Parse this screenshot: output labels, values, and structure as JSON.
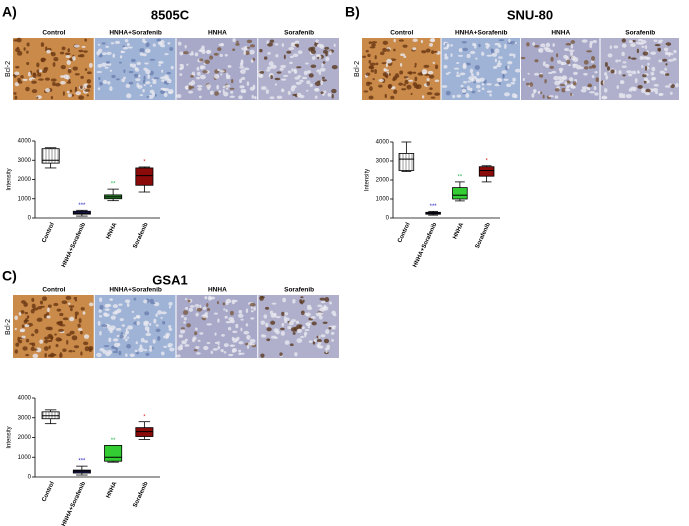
{
  "chart_data": [
    {
      "type": "box",
      "panel": "A)",
      "title": "8505C",
      "row_label": "Bcl-2",
      "image_labels": [
        "Control",
        "HNHA+Sorafenib",
        "HNHA",
        "Sorafenib"
      ],
      "ylabel": "Intensity",
      "categories": [
        "Control",
        "HNHA+Sorafenib",
        "HNHA",
        "Sorafenib"
      ],
      "boxes": [
        {
          "min": 2600,
          "q1": 2850,
          "median": 3000,
          "q3": 3600,
          "max": 3650
        },
        {
          "min": 100,
          "q1": 200,
          "median": 250,
          "q3": 350,
          "max": 400
        },
        {
          "min": 900,
          "q1": 1000,
          "median": 1100,
          "q3": 1200,
          "max": 1500
        },
        {
          "min": 1350,
          "q1": 1700,
          "median": 2200,
          "q3": 2600,
          "max": 2650
        }
      ],
      "colors": [
        "#ffffff",
        "#1c1c5c",
        "#2f8f2f",
        "#8b0a0a"
      ],
      "annotations": [
        null,
        "***",
        "**",
        "*"
      ],
      "annotation_colors": [
        null,
        "#2020c0",
        "#20b050",
        "#e02020"
      ],
      "ylim": [
        0,
        4000
      ],
      "yticks": [
        0,
        1000,
        2000,
        3000,
        4000
      ]
    },
    {
      "type": "box",
      "panel": "B)",
      "title": "SNU-80",
      "row_label": "Bcl-2",
      "image_labels": [
        "Control",
        "HNHA+Sorafenib",
        "HNHA",
        "Sorafenib"
      ],
      "ylabel": "Intensity",
      "categories": [
        "Control",
        "HNHA+Sorafenib",
        "HNHA",
        "Sorafenib"
      ],
      "boxes": [
        {
          "min": 2450,
          "q1": 2500,
          "median": 3100,
          "q3": 3400,
          "max": 4000
        },
        {
          "min": 150,
          "q1": 200,
          "median": 250,
          "q3": 300,
          "max": 350
        },
        {
          "min": 900,
          "q1": 1000,
          "median": 1200,
          "q3": 1600,
          "max": 1900
        },
        {
          "min": 1900,
          "q1": 2200,
          "median": 2500,
          "q3": 2700,
          "max": 2750
        }
      ],
      "colors": [
        "#ffffff",
        "#1c1c5c",
        "#33cc33",
        "#8b0a0a"
      ],
      "annotations": [
        null,
        "***",
        "**",
        "*"
      ],
      "annotation_colors": [
        null,
        "#2020c0",
        "#20b050",
        "#e02020"
      ],
      "ylim": [
        0,
        4000
      ],
      "yticks": [
        0,
        1000,
        2000,
        3000,
        4000
      ]
    },
    {
      "type": "box",
      "panel": "C)",
      "title": "GSA1",
      "row_label": "Bcl-2",
      "image_labels": [
        "Control",
        "HNHA+Sorafenib",
        "HNHA",
        "Sorafenib"
      ],
      "ylabel": "Intensity",
      "categories": [
        "Control",
        "HNHA+Sorafenib",
        "HNHA",
        "Sorafenib"
      ],
      "boxes": [
        {
          "min": 2700,
          "q1": 2950,
          "median": 3100,
          "q3": 3300,
          "max": 3400
        },
        {
          "min": 100,
          "q1": 200,
          "median": 300,
          "q3": 350,
          "max": 550
        },
        {
          "min": 750,
          "q1": 800,
          "median": 1000,
          "q3": 1600,
          "max": 1600
        },
        {
          "min": 1900,
          "q1": 2050,
          "median": 2300,
          "q3": 2500,
          "max": 2800
        }
      ],
      "colors": [
        "#ffffff",
        "#1c1c5c",
        "#33cc33",
        "#8b0a0a"
      ],
      "annotations": [
        null,
        "***",
        "**",
        "*"
      ],
      "annotation_colors": [
        null,
        "#2020c0",
        "#20b050",
        "#e02020"
      ],
      "ylim": [
        0,
        4000
      ],
      "yticks": [
        0,
        1000,
        2000,
        3000,
        4000
      ]
    }
  ]
}
